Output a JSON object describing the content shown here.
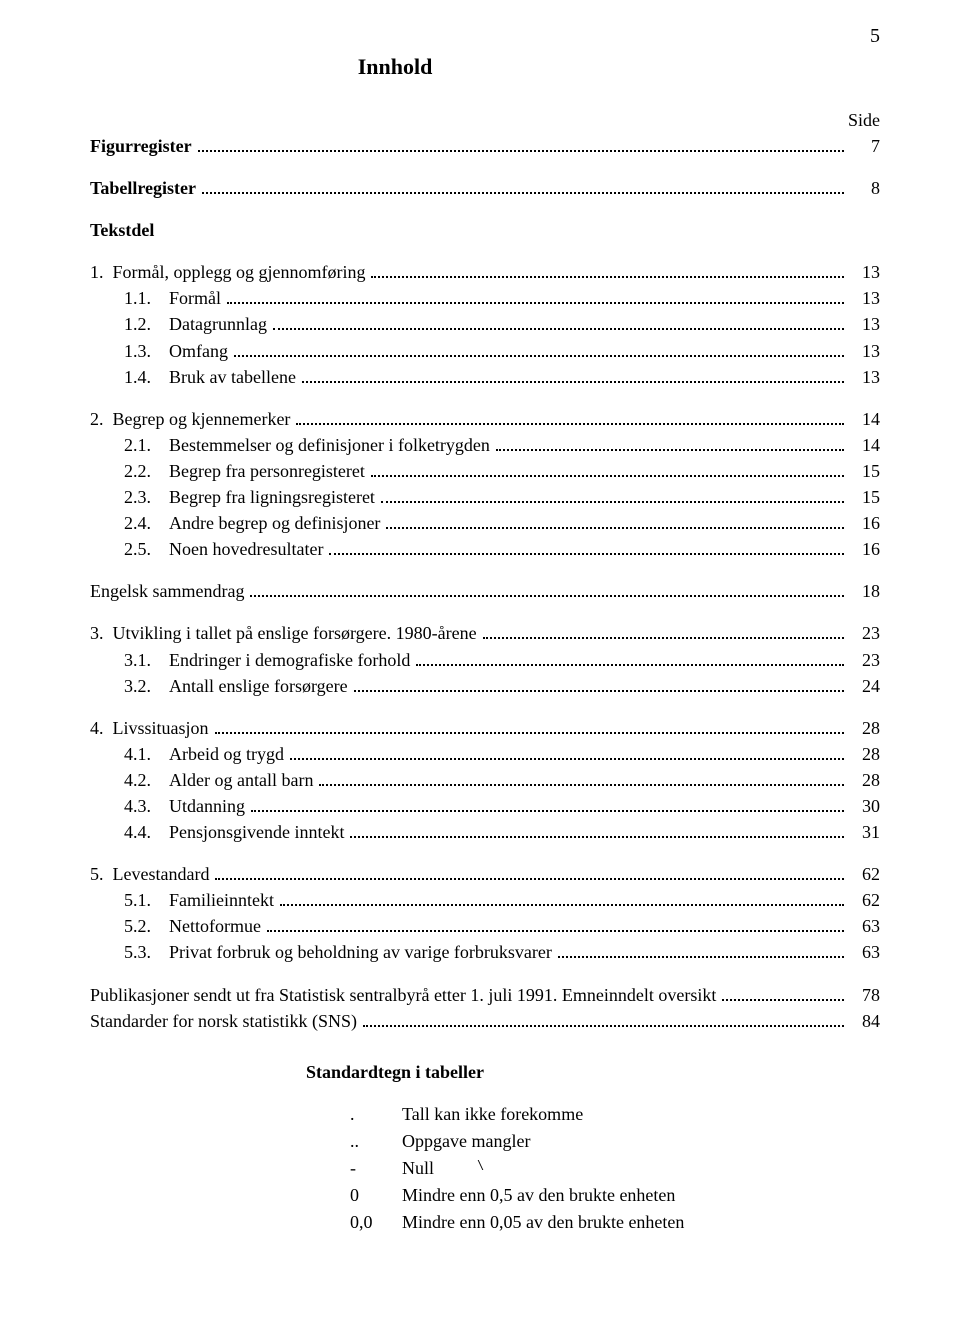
{
  "pageNumber": "5",
  "title": "Innhold",
  "sideLabel": "Side",
  "entries": [
    {
      "type": "row",
      "bold": true,
      "num": "",
      "label": "Figurregister",
      "page": "7",
      "indent": 0
    },
    {
      "type": "gap"
    },
    {
      "type": "row",
      "bold": true,
      "num": "",
      "label": "Tabellregister",
      "page": "8",
      "indent": 0
    },
    {
      "type": "gap"
    },
    {
      "type": "row",
      "bold": true,
      "num": "",
      "label": "Tekstdel",
      "page": "",
      "indent": 0,
      "noDots": true
    },
    {
      "type": "gap"
    },
    {
      "type": "row",
      "num": "1.  ",
      "label": "Formål, opplegg og gjennomføring",
      "page": "13",
      "indent": 0
    },
    {
      "type": "row",
      "num": "1.1.    ",
      "label": "Formål",
      "page": "13",
      "indent": 1
    },
    {
      "type": "row",
      "num": "1.2.    ",
      "label": "Datagrunnlag",
      "page": "13",
      "indent": 1
    },
    {
      "type": "row",
      "num": "1.3.    ",
      "label": "Omfang",
      "page": "13",
      "indent": 1
    },
    {
      "type": "row",
      "num": "1.4.    ",
      "label": "Bruk av tabellene",
      "page": "13",
      "indent": 1
    },
    {
      "type": "gap"
    },
    {
      "type": "row",
      "num": "2.  ",
      "label": "Begrep og kjennemerker",
      "page": "14",
      "indent": 0
    },
    {
      "type": "row",
      "num": "2.1.    ",
      "label": "Bestemmelser og definisjoner i folketrygden",
      "page": "14",
      "indent": 1
    },
    {
      "type": "row",
      "num": "2.2.    ",
      "label": "Begrep fra personregisteret",
      "page": "15",
      "indent": 1
    },
    {
      "type": "row",
      "num": "2.3.    ",
      "label": "Begrep fra ligningsregisteret",
      "page": "15",
      "indent": 1
    },
    {
      "type": "row",
      "num": "2.4.    ",
      "label": "Andre begrep og definisjoner",
      "page": "16",
      "indent": 1
    },
    {
      "type": "row",
      "num": "2.5.    ",
      "label": "Noen hovedresultater",
      "page": "16",
      "indent": 1
    },
    {
      "type": "gap"
    },
    {
      "type": "row",
      "num": "",
      "label": "Engelsk sammendrag",
      "page": "18",
      "indent": 0
    },
    {
      "type": "gap"
    },
    {
      "type": "row",
      "num": "3.  ",
      "label": "Utvikling i tallet på enslige forsørgere. 1980-årene",
      "page": "23",
      "indent": 0
    },
    {
      "type": "row",
      "num": "3.1.    ",
      "label": "Endringer i demografiske forhold",
      "page": "23",
      "indent": 1
    },
    {
      "type": "row",
      "num": "3.2.    ",
      "label": "Antall enslige forsørgere",
      "page": "24",
      "indent": 1
    },
    {
      "type": "gap"
    },
    {
      "type": "row",
      "num": "4.  ",
      "label": "Livssituasjon",
      "page": "28",
      "indent": 0
    },
    {
      "type": "row",
      "num": "4.1.    ",
      "label": "Arbeid og trygd",
      "page": "28",
      "indent": 1
    },
    {
      "type": "row",
      "num": "4.2.    ",
      "label": "Alder og antall barn",
      "page": "28",
      "indent": 1
    },
    {
      "type": "row",
      "num": "4.3.    ",
      "label": "Utdanning",
      "page": "30",
      "indent": 1
    },
    {
      "type": "row",
      "num": "4.4.    ",
      "label": "Pensjonsgivende inntekt",
      "page": "31",
      "indent": 1
    },
    {
      "type": "gap"
    },
    {
      "type": "row",
      "num": "5.  ",
      "label": "Levestandard",
      "page": "62",
      "indent": 0
    },
    {
      "type": "row",
      "num": "5.1.    ",
      "label": "Familieinntekt",
      "page": "62",
      "indent": 1
    },
    {
      "type": "row",
      "num": "5.2.    ",
      "label": "Nettoformue",
      "page": "63",
      "indent": 1
    },
    {
      "type": "row",
      "num": "5.3.    ",
      "label": "Privat forbruk og beholdning av varige forbruksvarer",
      "page": "63",
      "indent": 1
    },
    {
      "type": "gap"
    },
    {
      "type": "row",
      "num": "",
      "label": "Publikasjoner sendt ut fra Statistisk sentralbyrå etter 1. juli 1991. Emneinndelt oversikt",
      "page": "78",
      "indent": 0
    },
    {
      "type": "row",
      "num": "",
      "label": "Standarder for norsk statistikk (SNS)",
      "page": "84",
      "indent": 0
    }
  ],
  "legendTitle": "Standardtegn i tabeller",
  "legend": [
    {
      "sym": ".",
      "desc": "Tall kan ikke forekomme"
    },
    {
      "sym": "..",
      "desc": "Oppgave mangler"
    },
    {
      "sym": "-",
      "desc": "Null",
      "tick": true
    },
    {
      "sym": "0",
      "desc": "Mindre enn 0,5 av den brukte enheten"
    },
    {
      "sym": "0,0",
      "desc": "Mindre enn 0,05 av den brukte enheten"
    }
  ]
}
